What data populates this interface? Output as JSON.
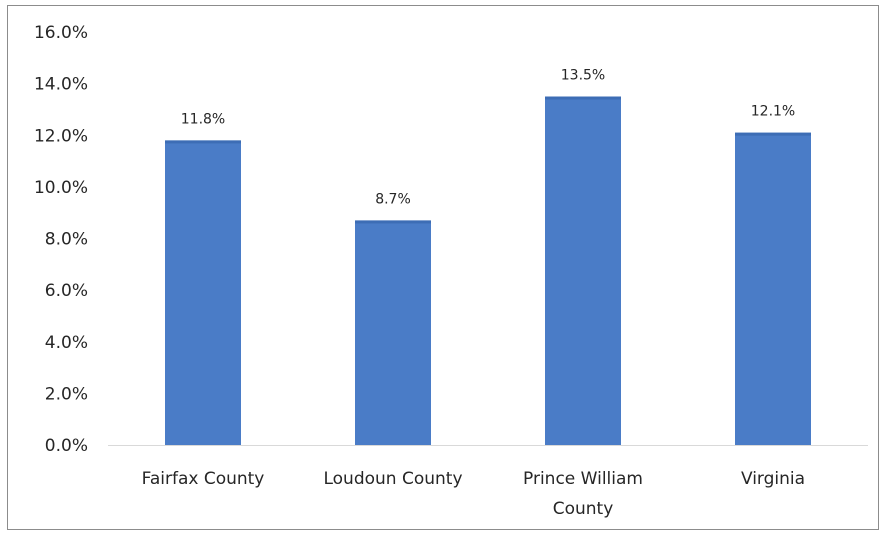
{
  "chart_data": {
    "type": "bar",
    "categories": [
      "Fairfax County",
      "Loudoun County",
      "Prince William County",
      "Virginia"
    ],
    "category_lines": [
      [
        "Fairfax County"
      ],
      [
        "Loudoun County"
      ],
      [
        "Prince William",
        "County"
      ],
      [
        "Virginia"
      ]
    ],
    "values": [
      11.8,
      8.7,
      13.5,
      12.1
    ],
    "data_labels": [
      "11.8%",
      "8.7%",
      "13.5%",
      "12.1%"
    ],
    "y_ticks": [
      0,
      2,
      4,
      6,
      8,
      10,
      12,
      14,
      16
    ],
    "y_tick_labels": [
      "0.0%",
      "2.0%",
      "4.0%",
      "6.0%",
      "8.0%",
      "10.0%",
      "12.0%",
      "14.0%",
      "16.0%"
    ],
    "ylim": [
      0,
      16
    ],
    "title": "",
    "xlabel": "",
    "ylabel": "",
    "grid": false,
    "legend": "none",
    "bar_color": "#4a7cc7",
    "bar_top_color": "#3d6db5"
  }
}
